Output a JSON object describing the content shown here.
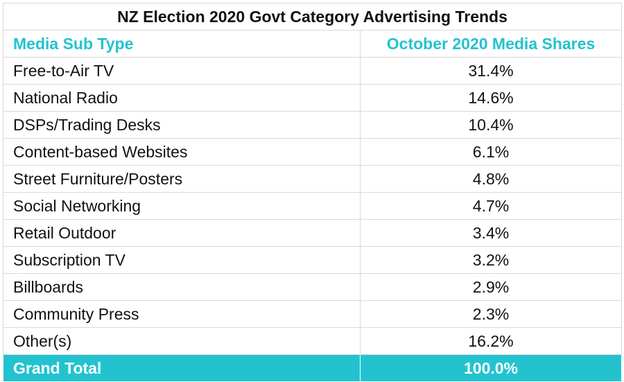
{
  "chart_data": {
    "type": "table",
    "title": "NZ Election 2020 Govt Category Advertising Trends",
    "columns": [
      "Media Sub Type",
      "October 2020 Media Shares"
    ],
    "rows": [
      {
        "label": "Free-to-Air TV",
        "value": "31.4%"
      },
      {
        "label": "National Radio",
        "value": "14.6%"
      },
      {
        "label": "DSPs/Trading Desks",
        "value": "10.4%"
      },
      {
        "label": "Content-based Websites",
        "value": "6.1%"
      },
      {
        "label": "Street Furniture/Posters",
        "value": "4.8%"
      },
      {
        "label": "Social Networking",
        "value": "4.7%"
      },
      {
        "label": "Retail Outdoor",
        "value": "3.4%"
      },
      {
        "label": "Subscription TV",
        "value": "3.2%"
      },
      {
        "label": "Billboards",
        "value": "2.9%"
      },
      {
        "label": "Community Press",
        "value": "2.3%"
      },
      {
        "label": "Other(s)",
        "value": "16.2%"
      }
    ],
    "total": {
      "label": "Grand Total",
      "value": "100.0%"
    },
    "colors": {
      "accent": "#22c3cf",
      "text": "#111111",
      "grid": "#d9d9d9"
    }
  }
}
